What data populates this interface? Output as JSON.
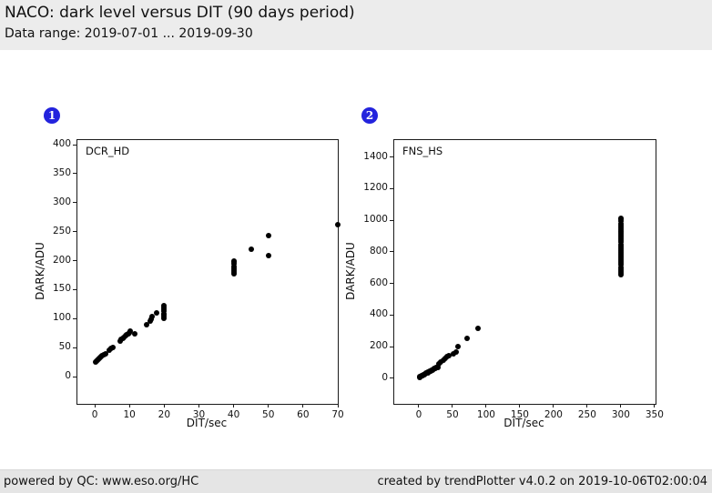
{
  "header": {
    "title": "NACO: dark level versus DIT (90 days period)",
    "subtitle": "Data range: 2019-07-01 ... 2019-09-30"
  },
  "footer": {
    "left": "powered by QC: www.eso.org/HC",
    "right": "created by trendPlotter v4.0.2 on 2019-10-06T02:00:04"
  },
  "badges": [
    "1",
    "2"
  ],
  "colors": {
    "badge": "#2323dd",
    "marker": "#000000",
    "header_bg": "#ececec",
    "footer_bg": "#e5e5e5"
  },
  "chart_data": [
    {
      "type": "scatter",
      "label": "DCR_HD",
      "xlabel": "DIT/sec",
      "ylabel": "DARK/ADU",
      "xlim": [
        -5,
        70
      ],
      "ylim": [
        -47,
        408
      ],
      "xticks": [
        0,
        10,
        20,
        30,
        40,
        50,
        60,
        70
      ],
      "yticks": [
        0,
        50,
        100,
        150,
        200,
        250,
        300,
        350,
        400
      ],
      "marker_color": "#000000",
      "points": [
        [
          0.3,
          25
        ],
        [
          0.5,
          27
        ],
        [
          0.7,
          28
        ],
        [
          1.0,
          30
        ],
        [
          1.2,
          31
        ],
        [
          1.5,
          33
        ],
        [
          1.8,
          35
        ],
        [
          2.2,
          36
        ],
        [
          2.6,
          38
        ],
        [
          3.0,
          40
        ],
        [
          4.3,
          46
        ],
        [
          4.7,
          48
        ],
        [
          5.1,
          50
        ],
        [
          7.2,
          62
        ],
        [
          7.6,
          64
        ],
        [
          8.0,
          66
        ],
        [
          8.4,
          68
        ],
        [
          8.8,
          70
        ],
        [
          9.2,
          72
        ],
        [
          9.6,
          74
        ],
        [
          10.0,
          76
        ],
        [
          10.3,
          78
        ],
        [
          11.5,
          74
        ],
        [
          15.0,
          89
        ],
        [
          16.0,
          95
        ],
        [
          16.3,
          99
        ],
        [
          16.5,
          103
        ],
        [
          17.8,
          110
        ],
        [
          19.8,
          100
        ],
        [
          20,
          103
        ],
        [
          20,
          106
        ],
        [
          20,
          109
        ],
        [
          20,
          113
        ],
        [
          20,
          116
        ],
        [
          20,
          119
        ],
        [
          20,
          122
        ],
        [
          40,
          177
        ],
        [
          40,
          180
        ],
        [
          40,
          184
        ],
        [
          40,
          187
        ],
        [
          40,
          190
        ],
        [
          40,
          194
        ],
        [
          40,
          197
        ],
        [
          40,
          200
        ],
        [
          45,
          220
        ],
        [
          50,
          208
        ],
        [
          50,
          244
        ],
        [
          70,
          262
        ]
      ]
    },
    {
      "type": "scatter",
      "label": "FNS_HS",
      "xlabel": "DIT/sec",
      "ylabel": "DARK/ADU",
      "xlim": [
        -36.5,
        351.5
      ],
      "ylim": [
        -162,
        1507
      ],
      "xticks": [
        0,
        50,
        100,
        150,
        200,
        250,
        300,
        350
      ],
      "yticks": [
        0,
        200,
        400,
        600,
        800,
        1000,
        1200,
        1400
      ],
      "marker_color": "#000000",
      "points": [
        [
          1,
          7
        ],
        [
          2,
          10
        ],
        [
          3,
          12
        ],
        [
          4,
          15
        ],
        [
          5,
          17
        ],
        [
          6,
          19
        ],
        [
          7,
          22
        ],
        [
          8,
          24
        ],
        [
          9,
          27
        ],
        [
          10,
          29
        ],
        [
          11,
          31
        ],
        [
          12,
          34
        ],
        [
          13,
          36
        ],
        [
          14,
          38
        ],
        [
          15,
          41
        ],
        [
          16,
          43
        ],
        [
          17,
          46
        ],
        [
          18,
          48
        ],
        [
          19,
          50
        ],
        [
          20,
          53
        ],
        [
          21,
          55
        ],
        [
          22,
          58
        ],
        [
          23,
          60
        ],
        [
          24,
          62
        ],
        [
          25,
          65
        ],
        [
          26,
          67
        ],
        [
          28,
          70
        ],
        [
          30,
          92
        ],
        [
          33,
          105
        ],
        [
          36,
          115
        ],
        [
          39,
          126
        ],
        [
          42,
          136
        ],
        [
          44,
          145
        ],
        [
          51,
          157
        ],
        [
          55,
          168
        ],
        [
          58,
          200
        ],
        [
          72,
          252
        ],
        [
          88,
          315
        ],
        [
          300,
          655
        ],
        [
          300,
          668
        ],
        [
          300,
          680
        ],
        [
          300,
          692
        ],
        [
          300,
          704
        ],
        [
          300,
          716
        ],
        [
          300,
          728
        ],
        [
          300,
          740
        ],
        [
          300,
          752
        ],
        [
          300,
          764
        ],
        [
          300,
          776
        ],
        [
          300,
          788
        ],
        [
          300,
          800
        ],
        [
          300,
          812
        ],
        [
          300,
          824
        ],
        [
          300,
          836
        ],
        [
          300,
          848
        ],
        [
          300,
          860
        ],
        [
          300,
          872
        ],
        [
          300,
          884
        ],
        [
          300,
          896
        ],
        [
          300,
          908
        ],
        [
          300,
          920
        ],
        [
          300,
          932
        ],
        [
          300,
          944
        ],
        [
          300,
          956
        ],
        [
          300,
          968
        ],
        [
          300,
          980
        ],
        [
          300,
          992
        ],
        [
          300,
          1004
        ],
        [
          300,
          1013
        ]
      ]
    }
  ]
}
